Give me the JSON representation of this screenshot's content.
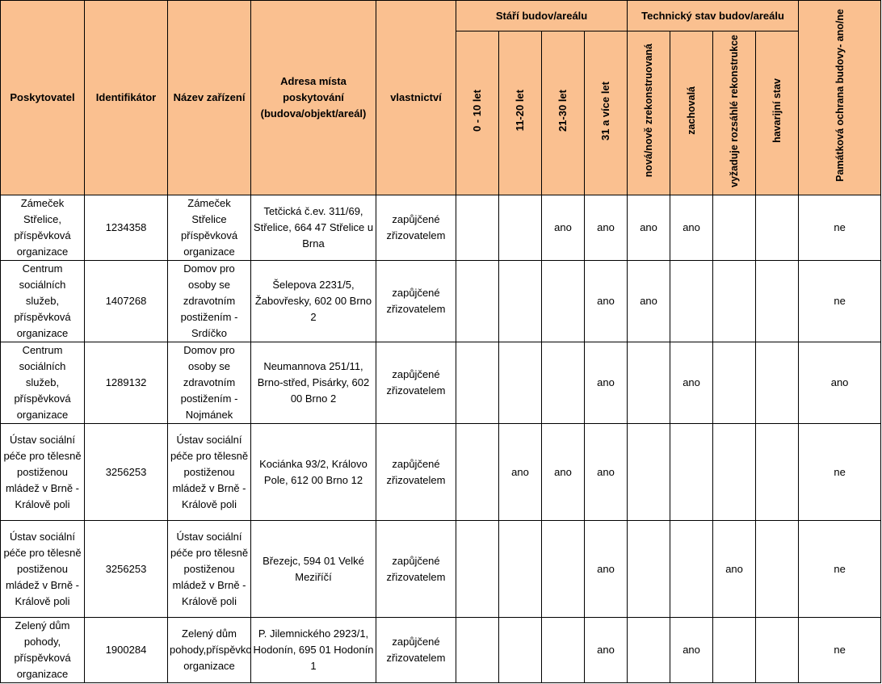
{
  "headers": {
    "poskytovatel": "Poskytovatel",
    "identifikator": "Identifikátor",
    "nazev": "Název zařízení",
    "adresa": "Adresa místa poskytování (budova/objekt/areál)",
    "vlastnictvi": "vlastnictví",
    "stari_group": "Stáří budov/areálu",
    "stari": [
      "0 - 10 let",
      "11-20 let",
      "21-30 let",
      "31 a více let"
    ],
    "stav_group": "Technický stav budov/areálu",
    "stav": [
      "nová/nově zrekonstruovaná",
      "zachovalá",
      "vyžaduje rozsáhlé rekonstrukce",
      "havarijní stav"
    ],
    "pamatkova": "Památková ochrana budovy- ano/ne"
  },
  "rows": [
    {
      "poskytovatel": "Zámeček Střelice, příspěvková organizace",
      "identifikator": "1234358",
      "nazev": "Zámeček Střelice příspěvková organizace",
      "adresa": "Tetčická č.ev. 311/69, Střelice, 664 47 Střelice u Brna",
      "vlastnictvi": "zapůjčené zřizovatelem",
      "stari": [
        "",
        "",
        "ano",
        "ano"
      ],
      "stav": [
        "ano",
        "ano",
        "",
        ""
      ],
      "pamatkova": "ne"
    },
    {
      "poskytovatel": "Centrum sociálních služeb, příspěvková organizace",
      "identifikator": "1407268",
      "nazev": "Domov pro osoby se zdravotním postižením - Srdíčko",
      "adresa": "Šelepova 2231/5, Žabovřesky, 602 00 Brno 2",
      "vlastnictvi": "zapůjčené zřizovatelem",
      "stari": [
        "",
        "",
        "",
        "ano"
      ],
      "stav": [
        "ano",
        "",
        "",
        ""
      ],
      "pamatkova": "ne"
    },
    {
      "poskytovatel": "Centrum sociálních služeb, příspěvková organizace",
      "identifikator": "1289132",
      "nazev": "Domov pro osoby se zdravotním postižením - Nojmánek",
      "adresa": "Neumannova 251/11, Brno-střed, Pisárky, 602 00 Brno 2",
      "vlastnictvi": "zapůjčené zřizovatelem",
      "stari": [
        "",
        "",
        "",
        "ano"
      ],
      "stav": [
        "",
        "ano",
        "",
        ""
      ],
      "pamatkova": "ano"
    },
    {
      "poskytovatel": "Ústav sociální péče pro tělesně postiženou mládež v Brně - Králově poli",
      "identifikator": "3256253",
      "nazev": "Ústav sociální péče pro tělesně postiženou mládež v Brně - Králově poli",
      "adresa": "Kociánka 93/2, Královo Pole, 612 00 Brno 12",
      "vlastnictvi": "zapůjčené zřizovatelem",
      "stari": [
        "",
        "ano",
        "ano",
        "ano"
      ],
      "stav": [
        "",
        "",
        "",
        ""
      ],
      "pamatkova": "ne"
    },
    {
      "poskytovatel": "Ústav sociální péče pro tělesně postiženou mládež v Brně - Králově poli",
      "identifikator": "3256253",
      "nazev": "Ústav sociální péče pro tělesně postiženou mládež v Brně - Králově poli",
      "adresa": "Březejc, 594 01 Velké Meziříčí",
      "vlastnictvi": "zapůjčené zřizovatelem",
      "stari": [
        "",
        "",
        "",
        "ano"
      ],
      "stav": [
        "",
        "",
        "ano",
        ""
      ],
      "pamatkova": "ne"
    },
    {
      "poskytovatel": "Zelený dům pohody, příspěvková organizace",
      "identifikator": "1900284",
      "nazev": "Zelený dům pohody,příspěvková organizace",
      "adresa": "P. Jilemnického 2923/1, Hodonín, 695 01 Hodonín 1",
      "vlastnictvi": "zapůjčené zřizovatelem",
      "stari": [
        "",
        "",
        "",
        "ano"
      ],
      "stav": [
        "",
        "ano",
        "",
        ""
      ],
      "pamatkova": "ne"
    }
  ]
}
